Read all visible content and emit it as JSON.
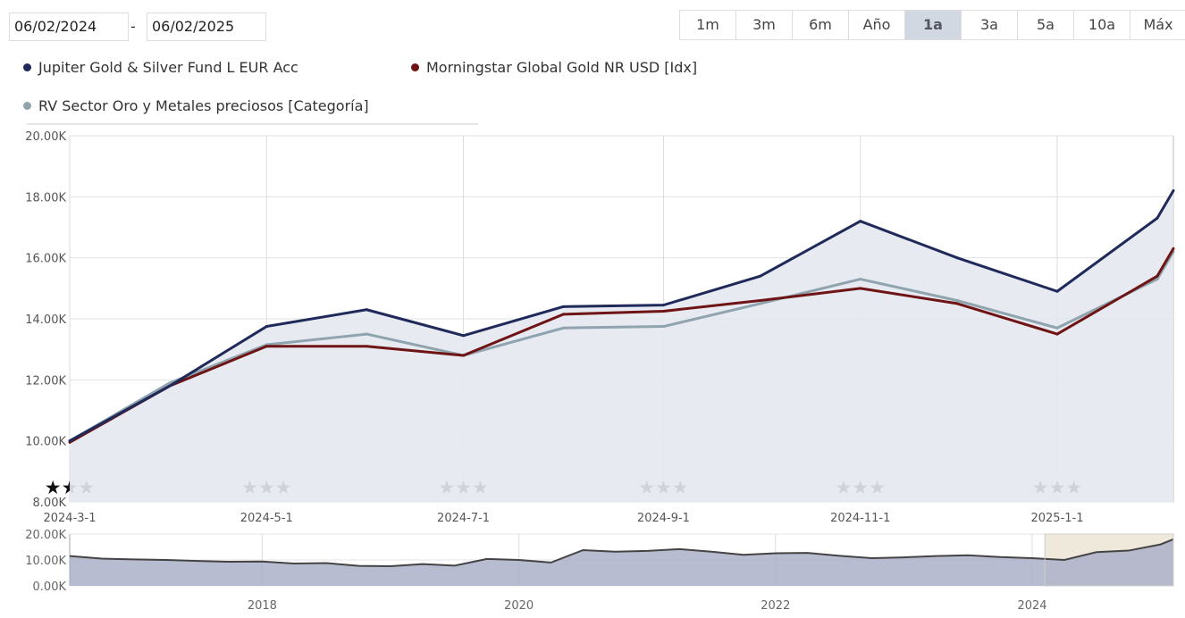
{
  "date_range": {
    "from": "06/02/2024",
    "to": "06/02/2025"
  },
  "range_buttons": [
    {
      "label": "1m"
    },
    {
      "label": "3m"
    },
    {
      "label": "6m"
    },
    {
      "label": "Año"
    },
    {
      "label": "1a",
      "active": true
    },
    {
      "label": "3a"
    },
    {
      "label": "5a"
    },
    {
      "label": "10a"
    },
    {
      "label": "Máx"
    }
  ],
  "colors": {
    "fund": "#1f2a5a",
    "index": "#6e1414",
    "category": "#8fa4ae",
    "area": "#e6e8f0",
    "navigator_area": "#aab0c8",
    "navigator_selection": "#efe9dc"
  },
  "chart_data": {
    "type": "line",
    "x": [
      "2024-03-01",
      "2024-04-01",
      "2024-05-01",
      "2024-06-01",
      "2024-07-01",
      "2024-08-01",
      "2024-09-01",
      "2024-10-01",
      "2024-11-01",
      "2024-12-01",
      "2025-01-01",
      "2025-02-01",
      "2025-02-06"
    ],
    "series": [
      {
        "name": "Jupiter Gold & Silver Fund L EUR Acc",
        "values": [
          10000,
          11800,
          13750,
          14300,
          13450,
          14400,
          14450,
          15400,
          17200,
          16000,
          14900,
          17300,
          18200
        ]
      },
      {
        "name": "Morningstar Global Gold NR USD [Idx]",
        "values": [
          9950,
          11800,
          13100,
          13100,
          12800,
          14150,
          14250,
          14600,
          15000,
          14500,
          13500,
          15400,
          16300
        ]
      },
      {
        "name": "RV Sector Oro y Metales preciosos [Categoría]",
        "values": [
          10000,
          11900,
          13150,
          13500,
          12800,
          13700,
          13750,
          14500,
          15300,
          14600,
          13700,
          15300,
          16200
        ]
      }
    ],
    "ylim": [
      8000,
      20000
    ],
    "yticks": [
      "8.00K",
      "10.00K",
      "12.00K",
      "14.00K",
      "16.00K",
      "18.00K",
      "20.00K"
    ],
    "xticks": [
      "2024-3-1",
      "2024-5-1",
      "2024-7-1",
      "2024-9-1",
      "2024-11-1",
      "2025-1-1"
    ],
    "star_rating": 3,
    "grid": true,
    "legend": "top",
    "navigator": {
      "yticks": [
        "0.00K",
        "10.00K",
        "20.00K"
      ],
      "xticks": [
        "2018",
        "2020",
        "2022",
        "2024"
      ],
      "ylim": [
        0,
        20000
      ],
      "x": [
        2016.5,
        2016.75,
        2017,
        2017.25,
        2017.5,
        2017.75,
        2018,
        2018.25,
        2018.5,
        2018.75,
        2019,
        2019.25,
        2019.5,
        2019.75,
        2020,
        2020.25,
        2020.5,
        2020.75,
        2021,
        2021.25,
        2021.5,
        2021.75,
        2022,
        2022.25,
        2022.5,
        2022.75,
        2023,
        2023.25,
        2023.5,
        2023.75,
        2024,
        2024.25,
        2024.5,
        2024.75,
        2025,
        2025.1
      ],
      "values": [
        11500,
        10500,
        10200,
        10000,
        9600,
        9300,
        9400,
        8600,
        8800,
        7700,
        7600,
        8400,
        7800,
        10400,
        10000,
        9000,
        13800,
        13200,
        13500,
        14200,
        13200,
        12000,
        12600,
        12700,
        11600,
        10700,
        11000,
        11500,
        11800,
        11100,
        10700,
        10000,
        13000,
        13600,
        16000,
        18000
      ],
      "selection": [
        "2024-02-06",
        "2025-02-06"
      ]
    }
  }
}
